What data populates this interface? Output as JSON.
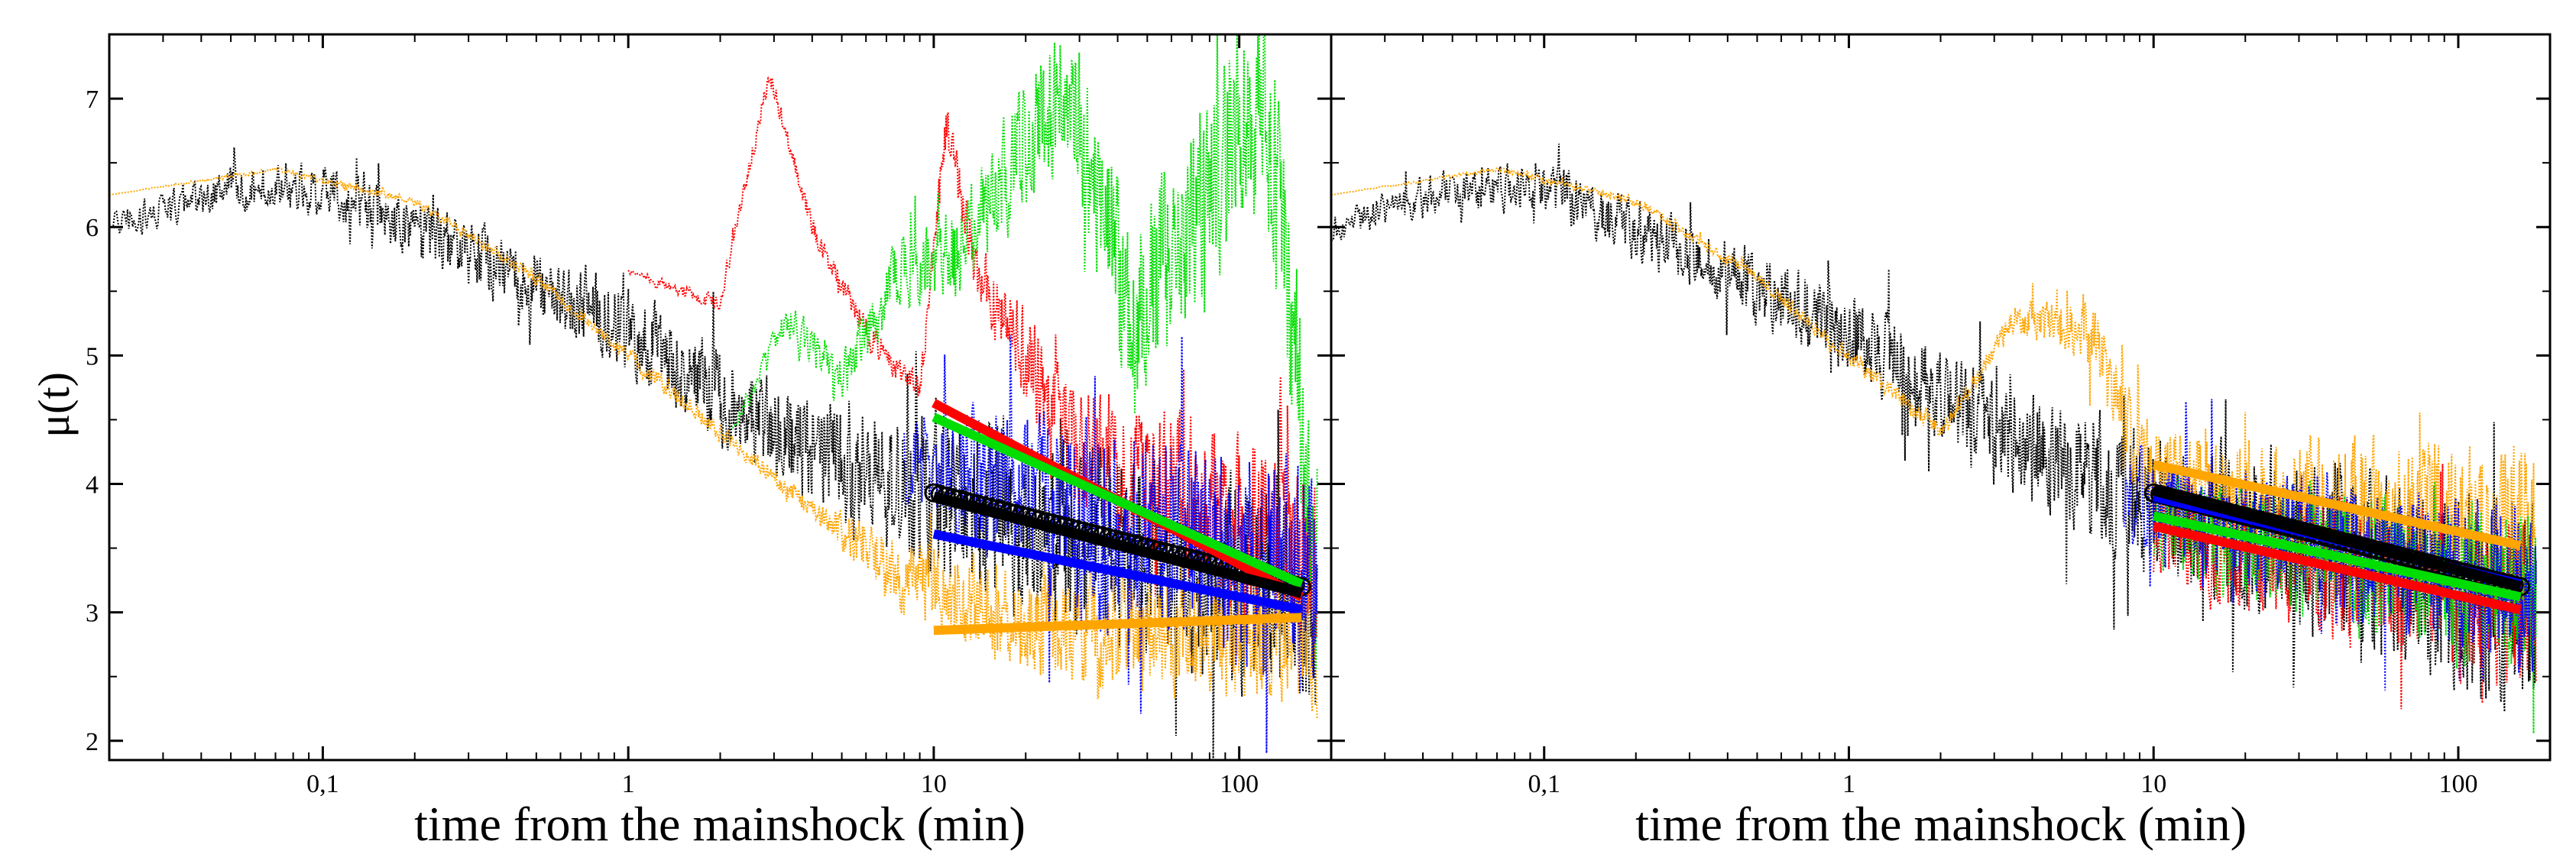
{
  "chart_data": [
    {
      "type": "line",
      "panel": "left",
      "xscale": "log",
      "xlim": [
        0.02,
        200
      ],
      "ylim": [
        1.85,
        7.5
      ],
      "xlabel": "time from the mainshock (min)",
      "ylabel": "μ(t)",
      "xticks": [
        0.1,
        1,
        10,
        100
      ],
      "xtick_labels": [
        "0,1",
        "1",
        "10",
        "100"
      ],
      "yticks": [
        2,
        3,
        4,
        5,
        6,
        7
      ],
      "ytick_labels": [
        "2",
        "3",
        "4",
        "5",
        "6",
        "7"
      ],
      "series": [
        {
          "name": "black data",
          "color": "#000000",
          "style": "dotted",
          "base": [
            [
              0.02,
              6.0
            ],
            [
              0.05,
              6.3
            ],
            [
              0.1,
              6.3
            ],
            [
              0.3,
              5.8
            ],
            [
              1,
              5.2
            ],
            [
              3,
              4.4
            ],
            [
              10,
              3.9
            ],
            [
              30,
              3.5
            ],
            [
              100,
              3.2
            ],
            [
              180,
              3.1
            ]
          ],
          "noise": [
            [
              0.02,
              0.15
            ],
            [
              0.5,
              0.35
            ],
            [
              3,
              0.5
            ],
            [
              20,
              0.9
            ],
            [
              180,
              1.1
            ]
          ]
        },
        {
          "name": "orange data",
          "color": "#FFA500",
          "style": "dotted",
          "base": [
            [
              0.02,
              6.25
            ],
            [
              0.07,
              6.45
            ],
            [
              0.2,
              6.2
            ],
            [
              0.5,
              5.6
            ],
            [
              1,
              5.0
            ],
            [
              2,
              4.4
            ],
            [
              4,
              3.8
            ],
            [
              8,
              3.3
            ],
            [
              20,
              2.9
            ],
            [
              180,
              2.8
            ]
          ],
          "noise": [
            [
              0.02,
              0.0
            ],
            [
              4,
              0.1
            ],
            [
              8,
              0.4
            ],
            [
              180,
              0.7
            ]
          ]
        },
        {
          "name": "red data",
          "color": "#FF0000",
          "style": "dotted",
          "base": [
            [
              1,
              5.65
            ],
            [
              2,
              5.4
            ],
            [
              2.9,
              7.2
            ],
            [
              4,
              6.0
            ],
            [
              6,
              5.2
            ],
            [
              9,
              4.7
            ],
            [
              11,
              6.8
            ],
            [
              14,
              5.6
            ],
            [
              30,
              4.3
            ],
            [
              180,
              3.4
            ]
          ],
          "noise": [
            [
              1,
              0.05
            ],
            [
              9,
              0.15
            ],
            [
              30,
              0.6
            ],
            [
              180,
              0.9
            ]
          ]
        },
        {
          "name": "green data",
          "color": "#00DD00",
          "style": "dotted",
          "base": [
            [
              2.2,
              4.4
            ],
            [
              3.3,
              5.3
            ],
            [
              5,
              4.8
            ],
            [
              7.5,
              5.6
            ],
            [
              12,
              5.8
            ],
            [
              18,
              6.5
            ],
            [
              28,
              7.1
            ],
            [
              45,
              5.2
            ],
            [
              120,
              7.1
            ],
            [
              180,
              3.4
            ]
          ],
          "noise": [
            [
              2.2,
              0.1
            ],
            [
              10,
              0.4
            ],
            [
              40,
              0.9
            ],
            [
              180,
              1.1
            ]
          ]
        },
        {
          "name": "blue data",
          "color": "#0000FF",
          "style": "dotted",
          "base": [
            [
              8,
              4.2
            ],
            [
              12,
              4.1
            ],
            [
              30,
              3.7
            ],
            [
              100,
              3.4
            ],
            [
              180,
              3.3
            ]
          ],
          "noise": [
            [
              8,
              0.5
            ],
            [
              30,
              1.0
            ],
            [
              180,
              1.1
            ]
          ]
        }
      ],
      "fit_lines": [
        {
          "name": "red fit",
          "color": "#FF0000",
          "x": [
            10,
            160
          ],
          "y": [
            4.63,
            3.12
          ]
        },
        {
          "name": "green fit",
          "color": "#00DD00",
          "x": [
            10,
            160
          ],
          "y": [
            4.52,
            3.22
          ]
        },
        {
          "name": "blue fit",
          "color": "#0000FF",
          "x": [
            10,
            160
          ],
          "y": [
            3.61,
            3.02
          ]
        },
        {
          "name": "orange fit",
          "color": "#FFA500",
          "x": [
            10,
            160
          ],
          "y": [
            2.86,
            2.96
          ]
        },
        {
          "name": "black fit",
          "color": "#000000",
          "x": [
            10,
            160
          ],
          "y": [
            3.9,
            3.15
          ]
        }
      ],
      "black_circles": {
        "x_start": 10,
        "x_end": 160,
        "y_start": 3.93,
        "y_end": 3.2
      }
    },
    {
      "type": "line",
      "panel": "right",
      "xscale": "log",
      "xlim": [
        0.02,
        200
      ],
      "ylim": [
        1.85,
        7.5
      ],
      "xlabel": "time from the mainshock (min)",
      "xticks": [
        0.1,
        1,
        10,
        100
      ],
      "xtick_labels": [
        "0,1",
        "1",
        "10",
        "100"
      ],
      "series": [
        {
          "name": "black data",
          "color": "#000000",
          "style": "dotted",
          "base": [
            [
              0.02,
              6.0
            ],
            [
              0.05,
              6.3
            ],
            [
              0.1,
              6.3
            ],
            [
              0.3,
              5.8
            ],
            [
              1,
              5.2
            ],
            [
              3,
              4.4
            ],
            [
              10,
              3.8
            ],
            [
              30,
              3.5
            ],
            [
              100,
              3.2
            ],
            [
              180,
              3.1
            ]
          ],
          "noise": [
            [
              0.02,
              0.15
            ],
            [
              0.5,
              0.35
            ],
            [
              3,
              0.5
            ],
            [
              20,
              0.8
            ],
            [
              180,
              1.0
            ]
          ]
        },
        {
          "name": "orange data",
          "color": "#FFA500",
          "style": "dotted",
          "base": [
            [
              0.02,
              6.25
            ],
            [
              0.07,
              6.45
            ],
            [
              0.2,
              6.2
            ],
            [
              0.5,
              5.6
            ],
            [
              1,
              5.0
            ],
            [
              2,
              4.4
            ],
            [
              3.5,
              5.3
            ],
            [
              6,
              5.2
            ],
            [
              10,
              4.0
            ],
            [
              30,
              3.8
            ],
            [
              180,
              3.6
            ]
          ],
          "noise": [
            [
              0.02,
              0.0
            ],
            [
              3,
              0.1
            ],
            [
              10,
              0.5
            ],
            [
              180,
              0.9
            ]
          ]
        },
        {
          "name": "red data",
          "color": "#FF0000",
          "style": "dotted",
          "base": [
            [
              10,
              3.6
            ],
            [
              30,
              3.4
            ],
            [
              100,
              3.1
            ],
            [
              180,
              3.0
            ]
          ],
          "noise": [
            [
              10,
              0.5
            ],
            [
              180,
              0.8
            ]
          ]
        },
        {
          "name": "green data",
          "color": "#00DD00",
          "style": "dotted",
          "base": [
            [
              10,
              3.7
            ],
            [
              30,
              3.5
            ],
            [
              100,
              3.2
            ],
            [
              180,
              3.1
            ]
          ],
          "noise": [
            [
              10,
              0.5
            ],
            [
              180,
              0.8
            ]
          ]
        },
        {
          "name": "blue data",
          "color": "#0000FF",
          "style": "dotted",
          "base": [
            [
              8,
              3.9
            ],
            [
              30,
              3.6
            ],
            [
              100,
              3.3
            ],
            [
              180,
              3.2
            ]
          ],
          "noise": [
            [
              8,
              0.5
            ],
            [
              180,
              0.8
            ]
          ]
        }
      ],
      "fit_lines": [
        {
          "name": "orange fit",
          "color": "#FFA500",
          "x": [
            10,
            160
          ],
          "y": [
            4.15,
            3.52
          ]
        },
        {
          "name": "red fit",
          "color": "#FF0000",
          "x": [
            10,
            160
          ],
          "y": [
            3.67,
            3.02
          ]
        },
        {
          "name": "green fit",
          "color": "#00DD00",
          "x": [
            10,
            160
          ],
          "y": [
            3.75,
            3.12
          ]
        },
        {
          "name": "blue fit",
          "color": "#0000FF",
          "x": [
            10,
            160
          ],
          "y": [
            3.9,
            3.22
          ]
        },
        {
          "name": "black fit",
          "color": "#000000",
          "x": [
            10,
            160
          ],
          "y": [
            3.95,
            3.2
          ]
        }
      ],
      "black_circles": {
        "x_start": 10,
        "x_end": 160,
        "y_start": 3.93,
        "y_end": 3.2
      }
    }
  ]
}
